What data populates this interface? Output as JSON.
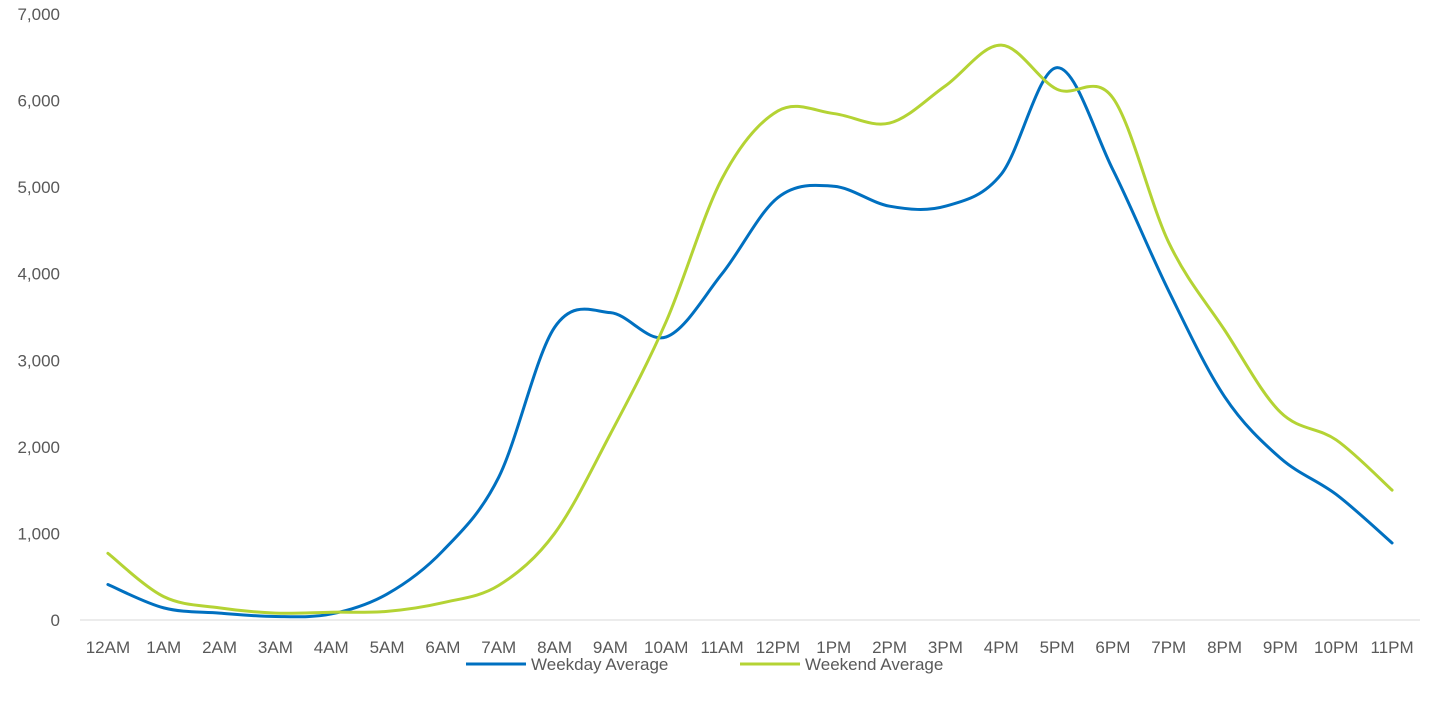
{
  "chart_data": {
    "type": "line",
    "title": "",
    "xlabel": "",
    "ylabel": "",
    "ylim": [
      0,
      7000
    ],
    "yticks": [
      0,
      1000,
      2000,
      3000,
      4000,
      5000,
      6000,
      7000
    ],
    "ytick_labels": [
      "0",
      "1,000",
      "2,000",
      "3,000",
      "4,000",
      "5,000",
      "6,000",
      "7,000"
    ],
    "categories": [
      "12AM",
      "1AM",
      "2AM",
      "3AM",
      "4AM",
      "5AM",
      "6AM",
      "7AM",
      "8AM",
      "9AM",
      "10AM",
      "11AM",
      "12PM",
      "1PM",
      "2PM",
      "3PM",
      "4PM",
      "5PM",
      "6PM",
      "7PM",
      "8PM",
      "9PM",
      "10PM",
      "11PM"
    ],
    "grid": false,
    "smooth": true,
    "legend_position": "bottom",
    "series": [
      {
        "name": "Weekday Average",
        "color": "#0070C0",
        "values": [
          410,
          140,
          80,
          40,
          70,
          300,
          800,
          1650,
          3380,
          3550,
          3270,
          4000,
          4880,
          5010,
          4780,
          4780,
          5150,
          6380,
          5200,
          3800,
          2580,
          1870,
          1450,
          890
        ]
      },
      {
        "name": "Weekend Average",
        "color": "#B4D334",
        "values": [
          770,
          270,
          140,
          80,
          90,
          100,
          200,
          400,
          1000,
          2150,
          3450,
          5100,
          5880,
          5850,
          5740,
          6170,
          6640,
          6130,
          6030,
          4360,
          3350,
          2400,
          2080,
          1500
        ]
      }
    ]
  }
}
